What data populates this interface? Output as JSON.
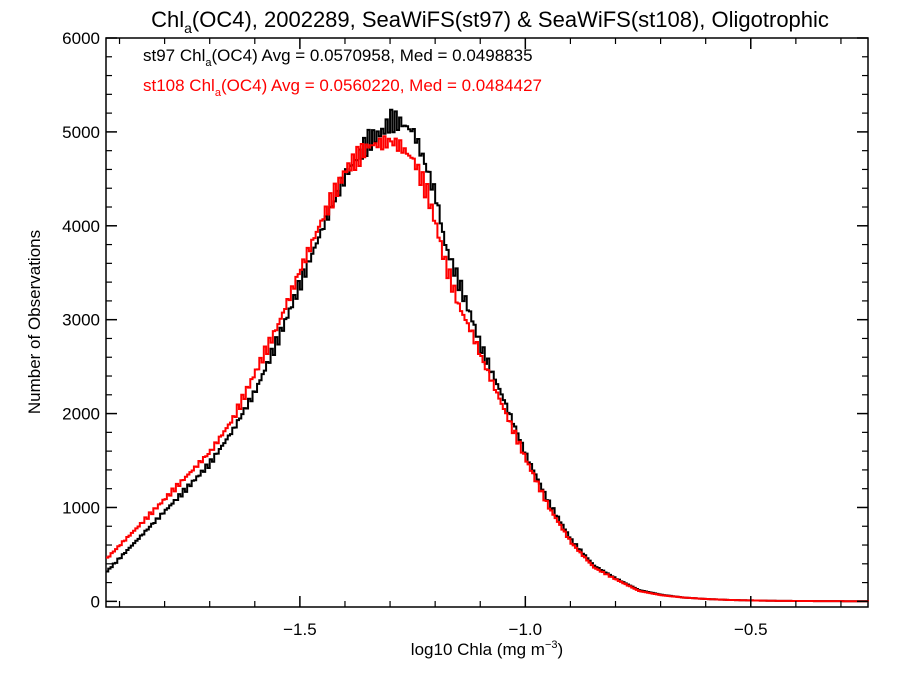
{
  "chart_data": {
    "type": "line",
    "title": {
      "pre": "Chl",
      "sub": "a",
      "post": "(OC4), 2002289, SeaWiFS(st97) & SeaWiFS(st108), Oligotrophic"
    },
    "xlabel": {
      "pre": "log10 Chla (mg m",
      "sup": "−3",
      "post": ")"
    },
    "ylabel": "Number of Observations",
    "xlim": [
      -1.93,
      -0.24
    ],
    "ylim": [
      -60,
      6000
    ],
    "xticks": [
      {
        "value": -1.5,
        "label": "−1.5"
      },
      {
        "value": -1.0,
        "label": "−1.0"
      },
      {
        "value": -0.5,
        "label": "−0.5"
      }
    ],
    "yticks": [
      {
        "value": 0,
        "label": "0"
      },
      {
        "value": 1000,
        "label": "1000"
      },
      {
        "value": 2000,
        "label": "2000"
      },
      {
        "value": 3000,
        "label": "3000"
      },
      {
        "value": 4000,
        "label": "4000"
      },
      {
        "value": 5000,
        "label": "5000"
      },
      {
        "value": 6000,
        "label": "6000"
      }
    ],
    "annotations": [
      {
        "pre": "st97 Chl",
        "sub": "a",
        "post": "(OC4) Avg = 0.0570958, Med = 0.0498835",
        "color": "#000000"
      },
      {
        "pre": "st108 Chl",
        "sub": "a",
        "post": "(OC4) Avg = 0.0560220, Med = 0.0484427",
        "color": "#ff0000"
      }
    ],
    "grid": false,
    "series": [
      {
        "color": "#000000",
        "x": [
          -1.93,
          -1.85,
          -1.75,
          -1.7,
          -1.65,
          -1.6,
          -1.55,
          -1.5,
          -1.45,
          -1.4,
          -1.35,
          -1.32,
          -1.3,
          -1.28,
          -1.25,
          -1.22,
          -1.2,
          -1.18,
          -1.15,
          -1.12,
          -1.1,
          -1.05,
          -1.0,
          -0.95,
          -0.9,
          -0.85,
          -0.8,
          -0.75,
          -0.7,
          -0.65,
          -0.6,
          -0.55,
          -0.5,
          -0.45,
          -0.4,
          -0.35,
          -0.3,
          -0.24
        ],
        "y": [
          320,
          720,
          1220,
          1480,
          1830,
          2250,
          2800,
          3400,
          4000,
          4550,
          4900,
          5000,
          5120,
          5100,
          5000,
          4600,
          4300,
          3800,
          3400,
          3000,
          2700,
          2150,
          1550,
          1050,
          650,
          380,
          240,
          120,
          70,
          40,
          25,
          15,
          10,
          6,
          4,
          3,
          2,
          1
        ]
      },
      {
        "color": "#ff0000",
        "x": [
          -1.93,
          -1.85,
          -1.75,
          -1.7,
          -1.65,
          -1.6,
          -1.55,
          -1.5,
          -1.45,
          -1.4,
          -1.35,
          -1.32,
          -1.3,
          -1.28,
          -1.25,
          -1.22,
          -1.2,
          -1.18,
          -1.15,
          -1.12,
          -1.1,
          -1.05,
          -1.0,
          -0.95,
          -0.9,
          -0.85,
          -0.8,
          -0.75,
          -0.7,
          -0.65,
          -0.6,
          -0.55,
          -0.5,
          -0.45,
          -0.4,
          -0.35,
          -0.3,
          -0.24
        ],
        "y": [
          460,
          850,
          1350,
          1600,
          1950,
          2450,
          2950,
          3550,
          4100,
          4600,
          4850,
          4880,
          4900,
          4850,
          4700,
          4350,
          4000,
          3600,
          3150,
          2850,
          2600,
          2050,
          1500,
          1000,
          620,
          360,
          230,
          110,
          65,
          40,
          25,
          15,
          10,
          6,
          4,
          3,
          2,
          1
        ]
      }
    ]
  }
}
